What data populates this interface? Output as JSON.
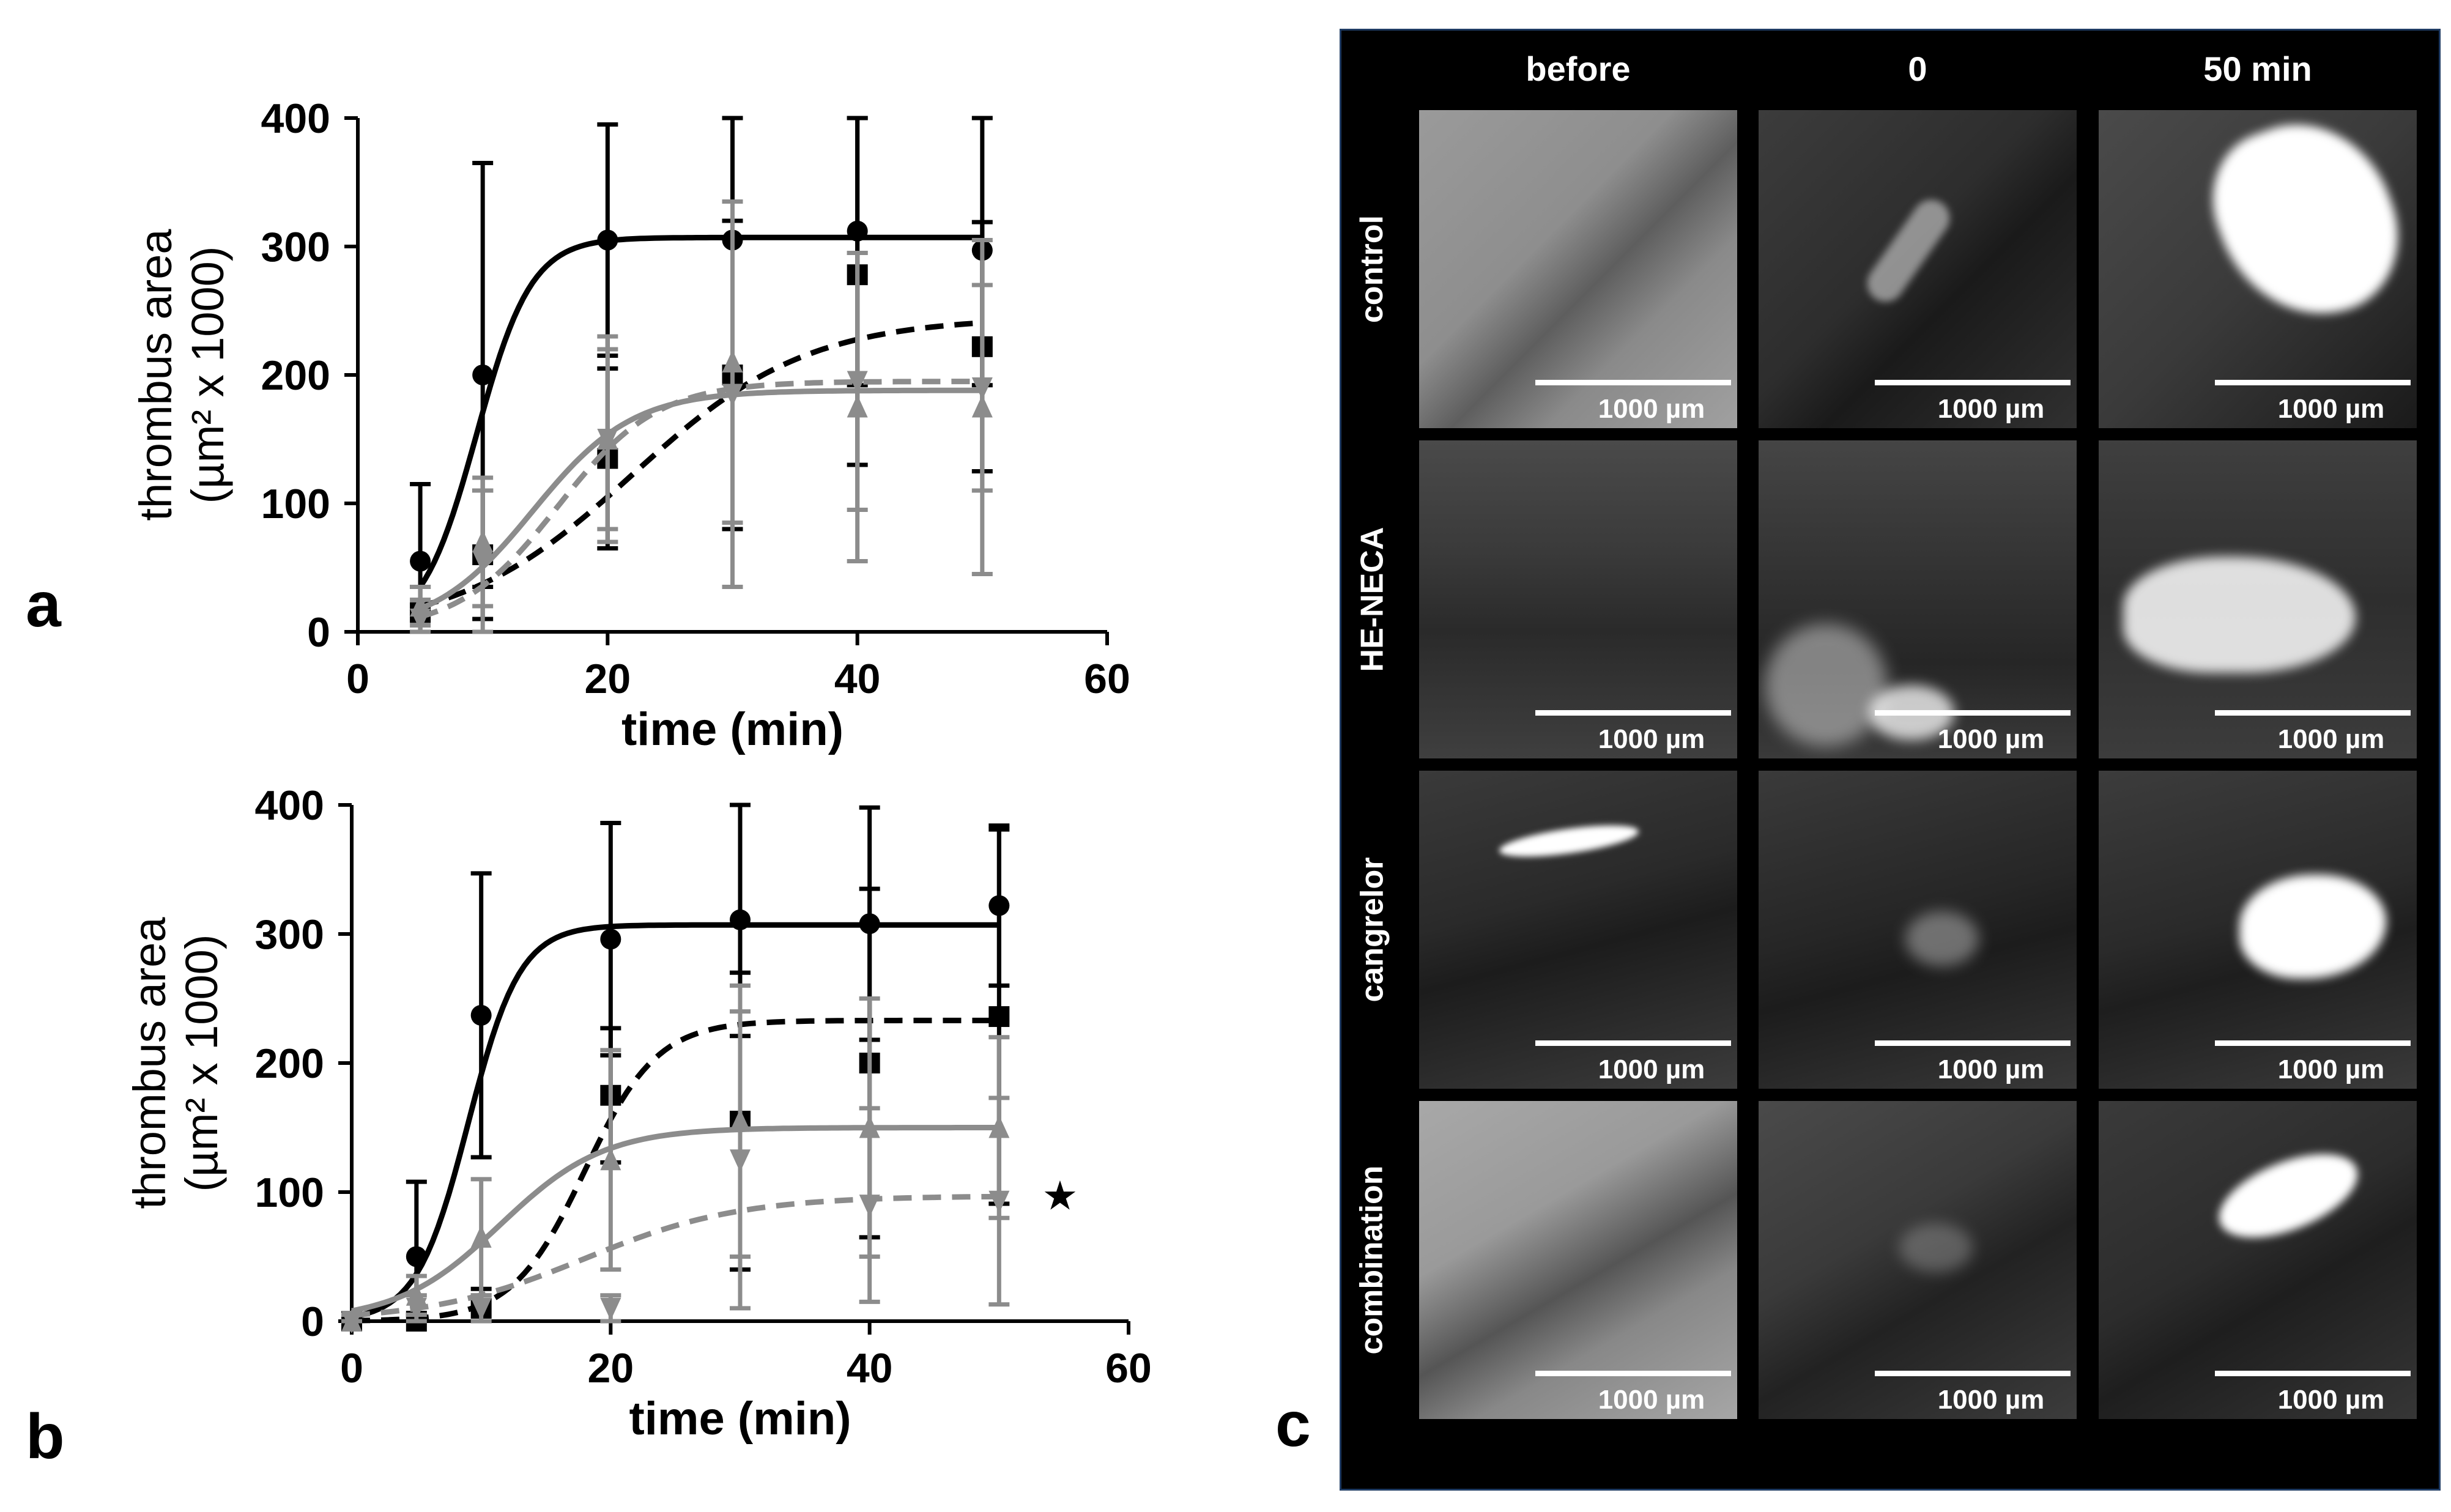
{
  "panel_labels": {
    "a": "a",
    "b": "b",
    "c": "c"
  },
  "chart_data": [
    {
      "type": "line",
      "xlabel": "time (min)",
      "ylabel_line1": "thrombus area",
      "ylabel_line2": "(µm² x 1000)",
      "xlim": [
        0,
        60
      ],
      "ylim": [
        0,
        400
      ],
      "xticks": [
        "0",
        "20",
        "40",
        "60"
      ],
      "yticks": [
        "0",
        "100",
        "200",
        "300",
        "400"
      ],
      "grid": false,
      "annotation": "",
      "series": [
        {
          "color": "#000000",
          "dash": "solid",
          "marker": "circle",
          "x": [
            5,
            10,
            20,
            30,
            40,
            50
          ],
          "y": [
            55,
            200,
            305,
            305,
            312,
            297
          ],
          "err": [
            60,
            165,
            90,
            100,
            120,
            105
          ],
          "fit": {
            "plateau": 307,
            "half": 9.5,
            "width": 2.2
          }
        },
        {
          "color": "#000000",
          "dash": "dashed",
          "marker": "square",
          "x": [
            5,
            10,
            20,
            30,
            40,
            50
          ],
          "y": [
            15,
            60,
            135,
            200,
            278,
            222
          ],
          "err": [
            20,
            50,
            70,
            120,
            148,
            97
          ],
          "fit": {
            "plateau": 245,
            "half": 22,
            "width": 7
          }
        },
        {
          "color": "#8c8c8c",
          "dash": "solid",
          "marker": "triangle-up",
          "x": [
            5,
            10,
            20,
            30,
            40,
            50
          ],
          "y": [
            20,
            70,
            150,
            210,
            175,
            175
          ],
          "err": [
            15,
            50,
            80,
            125,
            120,
            130
          ],
          "fit": {
            "plateau": 188,
            "half": 14,
            "width": 4
          }
        },
        {
          "color": "#8c8c8c",
          "dash": "dashed",
          "marker": "triangle-down",
          "x": [
            5,
            10,
            20,
            30,
            40,
            50
          ],
          "y": [
            10,
            55,
            150,
            185,
            195,
            190
          ],
          "err": [
            15,
            55,
            70,
            150,
            100,
            80
          ],
          "fit": {
            "plateau": 195,
            "half": 16,
            "width": 4
          }
        }
      ]
    },
    {
      "type": "line",
      "xlabel": "time (min)",
      "ylabel_line1": "thrombus area",
      "ylabel_line2": "(µm² x 1000)",
      "xlim": [
        0,
        60
      ],
      "ylim": [
        0,
        400
      ],
      "xticks": [
        "0",
        "20",
        "40",
        "60"
      ],
      "yticks": [
        "0",
        "100",
        "200",
        "300",
        "400"
      ],
      "grid": false,
      "annotation": "★",
      "series": [
        {
          "color": "#000000",
          "dash": "solid",
          "marker": "circle",
          "x": [
            0,
            5,
            10,
            20,
            30,
            40,
            50
          ],
          "y": [
            0,
            50,
            237,
            296,
            311,
            308,
            322
          ],
          "err": [
            5,
            58,
            110,
            90,
            90,
            90,
            62
          ],
          "fit": {
            "plateau": 307,
            "half": 9,
            "width": 2
          }
        },
        {
          "color": "#000000",
          "dash": "dashed",
          "marker": "square",
          "x": [
            0,
            5,
            10,
            20,
            30,
            40,
            50
          ],
          "y": [
            0,
            0,
            10,
            175,
            155,
            200,
            236
          ],
          "err": [
            5,
            5,
            15,
            52,
            115,
            135,
            145
          ],
          "fit": {
            "plateau": 233,
            "half": 18,
            "width": 2.8
          }
        },
        {
          "color": "#8c8c8c",
          "dash": "solid",
          "marker": "triangle-up",
          "x": [
            0,
            5,
            10,
            20,
            30,
            40,
            50
          ],
          "y": [
            0,
            20,
            65,
            125,
            155,
            150,
            150
          ],
          "err": [
            5,
            15,
            45,
            85,
            105,
            100,
            70
          ],
          "fit": {
            "plateau": 150,
            "half": 11.5,
            "width": 4
          }
        },
        {
          "color": "#8c8c8c",
          "dash": "dashed",
          "marker": "triangle-down",
          "x": [
            0,
            5,
            10,
            20,
            30,
            40,
            50
          ],
          "y": [
            0,
            10,
            10,
            10,
            125,
            90,
            93
          ],
          "err": [
            5,
            10,
            10,
            10,
            115,
            75,
            80
          ],
          "fit": {
            "plateau": 97,
            "half": 18,
            "width": 6
          }
        }
      ]
    }
  ],
  "image_grid": {
    "columns": [
      "before",
      "0",
      "50 min"
    ],
    "rows": [
      "control",
      "HE-NECA",
      "cangrelor",
      "combination"
    ],
    "scale_label": "1000 µm"
  }
}
